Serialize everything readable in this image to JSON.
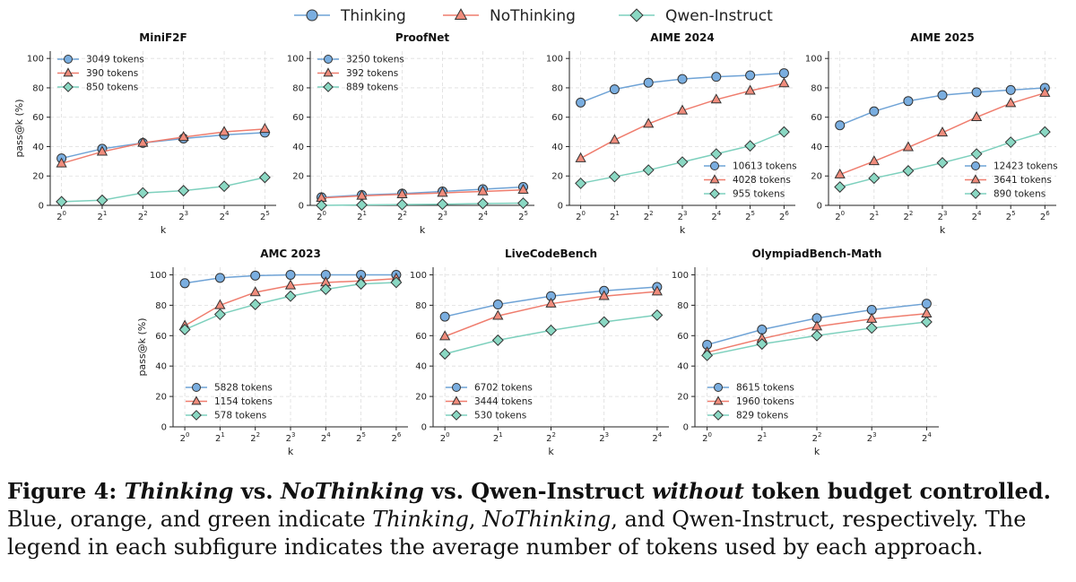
{
  "figure": {
    "legend_series": [
      "Thinking",
      "NoThinking",
      "Qwen-Instruct"
    ],
    "colors": {
      "Thinking": "#6fa3d6",
      "NoThinking": "#ef7d6e",
      "Qwen-Instruct": "#7dd0bd"
    },
    "marker_colors": {
      "Thinking": "#7aaee0",
      "NoThinking": "#f08c7c",
      "Qwen-Instruct": "#8ad8c3"
    }
  },
  "chart_data": [
    {
      "type": "line",
      "title": "MiniF2F",
      "xlabel": "k",
      "ylabel": "pass@k (%)",
      "ylim": [
        0,
        105
      ],
      "x": [
        "2^0",
        "2^1",
        "2^2",
        "2^3",
        "2^4",
        "2^5"
      ],
      "legend_placement": "top-left",
      "series": [
        {
          "name": "Thinking",
          "legend_label": "3049 tokens",
          "values": [
            32,
            38.5,
            42.5,
            45.5,
            48,
            49.5
          ]
        },
        {
          "name": "NoThinking",
          "legend_label": "390 tokens",
          "values": [
            28.5,
            36.5,
            42.5,
            46.5,
            50,
            52
          ]
        },
        {
          "name": "Qwen-Instruct",
          "legend_label": "850 tokens",
          "values": [
            2.5,
            3.5,
            8.5,
            10,
            13,
            19
          ]
        }
      ]
    },
    {
      "type": "line",
      "title": "ProofNet",
      "xlabel": "k",
      "ylabel": "",
      "ylim": [
        0,
        105
      ],
      "x": [
        "2^0",
        "2^1",
        "2^2",
        "2^3",
        "2^4",
        "2^5"
      ],
      "legend_placement": "top-left",
      "series": [
        {
          "name": "Thinking",
          "legend_label": "3250 tokens",
          "values": [
            5.5,
            7,
            8,
            9.5,
            11,
            12.5
          ]
        },
        {
          "name": "NoThinking",
          "legend_label": "392 tokens",
          "values": [
            5,
            6.5,
            7.5,
            8.5,
            9.5,
            10.5
          ]
        },
        {
          "name": "Qwen-Instruct",
          "legend_label": "889 tokens",
          "values": [
            0,
            0.3,
            0.5,
            0.8,
            1.2,
            1.5
          ]
        }
      ]
    },
    {
      "type": "line",
      "title": "AIME 2024",
      "xlabel": "k",
      "ylabel": "",
      "ylim": [
        0,
        105
      ],
      "x": [
        "2^0",
        "2^1",
        "2^2",
        "2^3",
        "2^4",
        "2^5",
        "2^6"
      ],
      "legend_placement": "bottom-right",
      "series": [
        {
          "name": "Thinking",
          "legend_label": "10613 tokens",
          "values": [
            70,
            79,
            83.5,
            86,
            87.5,
            88.5,
            90
          ]
        },
        {
          "name": "NoThinking",
          "legend_label": "4028 tokens",
          "values": [
            32,
            44.5,
            55.5,
            64.5,
            72,
            78,
            83
          ]
        },
        {
          "name": "Qwen-Instruct",
          "legend_label": "955 tokens",
          "values": [
            15,
            19.5,
            24,
            29.5,
            35,
            40.5,
            50
          ]
        }
      ]
    },
    {
      "type": "line",
      "title": "AIME 2025",
      "xlabel": "k",
      "ylabel": "",
      "ylim": [
        0,
        105
      ],
      "x": [
        "2^0",
        "2^1",
        "2^2",
        "2^3",
        "2^4",
        "2^5",
        "2^6"
      ],
      "legend_placement": "bottom-right",
      "series": [
        {
          "name": "Thinking",
          "legend_label": "12423 tokens",
          "values": [
            54.5,
            64,
            71,
            75,
            77,
            78.5,
            80
          ]
        },
        {
          "name": "NoThinking",
          "legend_label": "3641 tokens",
          "values": [
            21,
            30,
            39.5,
            49.5,
            60,
            69.5,
            76.5
          ]
        },
        {
          "name": "Qwen-Instruct",
          "legend_label": "890 tokens",
          "values": [
            12.5,
            18.5,
            23.5,
            29,
            35,
            43,
            50
          ]
        }
      ]
    },
    {
      "type": "line",
      "title": "AMC 2023",
      "xlabel": "k",
      "ylabel": "pass@k (%)",
      "ylim": [
        0,
        105
      ],
      "x": [
        "2^0",
        "2^1",
        "2^2",
        "2^3",
        "2^4",
        "2^5",
        "2^6"
      ],
      "legend_placement": "bottom-left",
      "series": [
        {
          "name": "Thinking",
          "legend_label": "5828 tokens",
          "values": [
            94.5,
            98,
            99.5,
            100,
            100,
            100,
            100
          ]
        },
        {
          "name": "NoThinking",
          "legend_label": "1154 tokens",
          "values": [
            66.5,
            80,
            88.5,
            93,
            95,
            96,
            97.5
          ]
        },
        {
          "name": "Qwen-Instruct",
          "legend_label": "578 tokens",
          "values": [
            64,
            74,
            80.5,
            86,
            90.5,
            94,
            95
          ]
        }
      ]
    },
    {
      "type": "line",
      "title": "LiveCodeBench",
      "xlabel": "k",
      "ylabel": "",
      "ylim": [
        0,
        105
      ],
      "x": [
        "2^0",
        "2^1",
        "2^2",
        "2^3",
        "2^4"
      ],
      "legend_placement": "bottom-left",
      "series": [
        {
          "name": "Thinking",
          "legend_label": "6702 tokens",
          "values": [
            72.5,
            80.5,
            86,
            89.5,
            92
          ]
        },
        {
          "name": "NoThinking",
          "legend_label": "3444 tokens",
          "values": [
            59.5,
            73,
            81,
            86,
            89
          ]
        },
        {
          "name": "Qwen-Instruct",
          "legend_label": "530 tokens",
          "values": [
            48,
            57,
            63.5,
            69,
            73.5
          ]
        }
      ]
    },
    {
      "type": "line",
      "title": "OlympiadBench-Math",
      "xlabel": "k",
      "ylabel": "",
      "ylim": [
        0,
        105
      ],
      "x": [
        "2^0",
        "2^1",
        "2^2",
        "2^3",
        "2^4"
      ],
      "legend_placement": "bottom-left",
      "series": [
        {
          "name": "Thinking",
          "legend_label": "8615 tokens",
          "values": [
            54,
            64,
            71.5,
            77,
            81
          ]
        },
        {
          "name": "NoThinking",
          "legend_label": "1960 tokens",
          "values": [
            49,
            58,
            66,
            71,
            74.5
          ]
        },
        {
          "name": "Qwen-Instruct",
          "legend_label": "829 tokens",
          "values": [
            47,
            54.5,
            60,
            65,
            69
          ]
        }
      ]
    }
  ],
  "caption": {
    "label": "Figure 4: ",
    "t1": "Thinking",
    "t2": " vs. ",
    "t3": "NoThinking",
    "t4": " vs. Qwen-Instruct ",
    "t5": "without",
    "t6": " token budget controlled.",
    "b1": " Blue, orange, and green indicate ",
    "b2": "Thinking",
    "b3": ", ",
    "b4": "NoThinking",
    "b5": ", and Qwen-Instruct, respectively. The legend in each subfigure indicates the average number of tokens used by each approach."
  }
}
